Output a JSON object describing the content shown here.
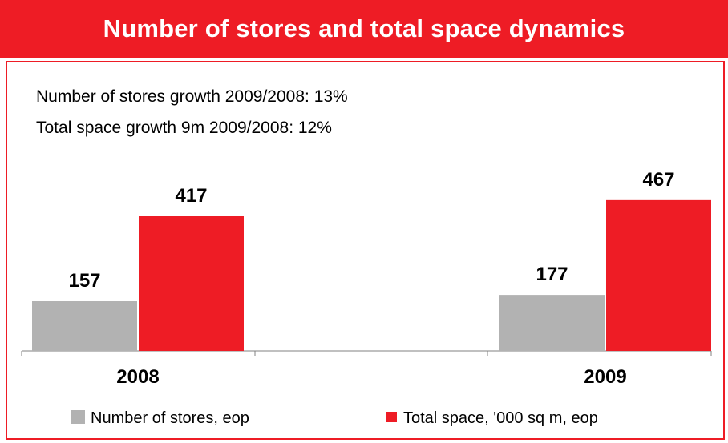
{
  "title": "Number of stores and total space dynamics",
  "notes": [
    "Number of stores growth 2009/2008: 13%",
    "Total space growth 9m 2009/2008: 12%"
  ],
  "colors": {
    "accent": "#ee1c25",
    "stores": "#b2b2b2",
    "space": "#ee1c25"
  },
  "chart_data": {
    "type": "bar",
    "categories": [
      "2008",
      "2009"
    ],
    "series": [
      {
        "name": "Number of stores, eop",
        "values": [
          157,
          177
        ],
        "color": "#b2b2b2"
      },
      {
        "name": "Total space, '000 sq m, eop",
        "values": [
          417,
          467
        ],
        "color": "#ee1c25"
      }
    ],
    "data_labels": true,
    "legend": "bottom",
    "grid": false,
    "scale": "independent per series"
  }
}
